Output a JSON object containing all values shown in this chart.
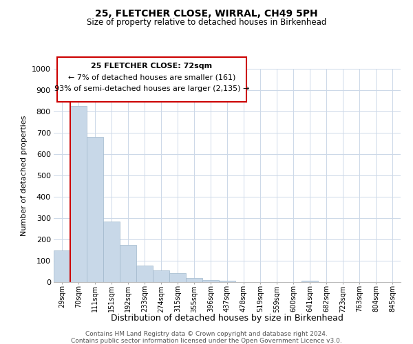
{
  "title": "25, FLETCHER CLOSE, WIRRAL, CH49 5PH",
  "subtitle": "Size of property relative to detached houses in Birkenhead",
  "xlabel": "Distribution of detached houses by size in Birkenhead",
  "ylabel": "Number of detached properties",
  "categories": [
    "29sqm",
    "70sqm",
    "111sqm",
    "151sqm",
    "192sqm",
    "233sqm",
    "274sqm",
    "315sqm",
    "355sqm",
    "396sqm",
    "437sqm",
    "478sqm",
    "519sqm",
    "559sqm",
    "600sqm",
    "641sqm",
    "682sqm",
    "723sqm",
    "763sqm",
    "804sqm",
    "845sqm"
  ],
  "values": [
    150,
    825,
    680,
    285,
    175,
    78,
    55,
    42,
    20,
    10,
    8,
    0,
    0,
    0,
    0,
    8,
    0,
    0,
    0,
    0,
    0
  ],
  "bar_color": "#c8d8e8",
  "bar_edge_color": "#a0b8cc",
  "vline_color": "#cc0000",
  "ylim": [
    0,
    1000
  ],
  "yticks": [
    0,
    100,
    200,
    300,
    400,
    500,
    600,
    700,
    800,
    900,
    1000
  ],
  "annotation_title": "25 FLETCHER CLOSE: 72sqm",
  "annotation_line1": "← 7% of detached houses are smaller (161)",
  "annotation_line2": "93% of semi-detached houses are larger (2,135) →",
  "annotation_box_color": "#ffffff",
  "annotation_box_edge": "#cc0000",
  "footer_line1": "Contains HM Land Registry data © Crown copyright and database right 2024.",
  "footer_line2": "Contains public sector information licensed under the Open Government Licence v3.0.",
  "background_color": "#ffffff",
  "grid_color": "#ccd8e8"
}
